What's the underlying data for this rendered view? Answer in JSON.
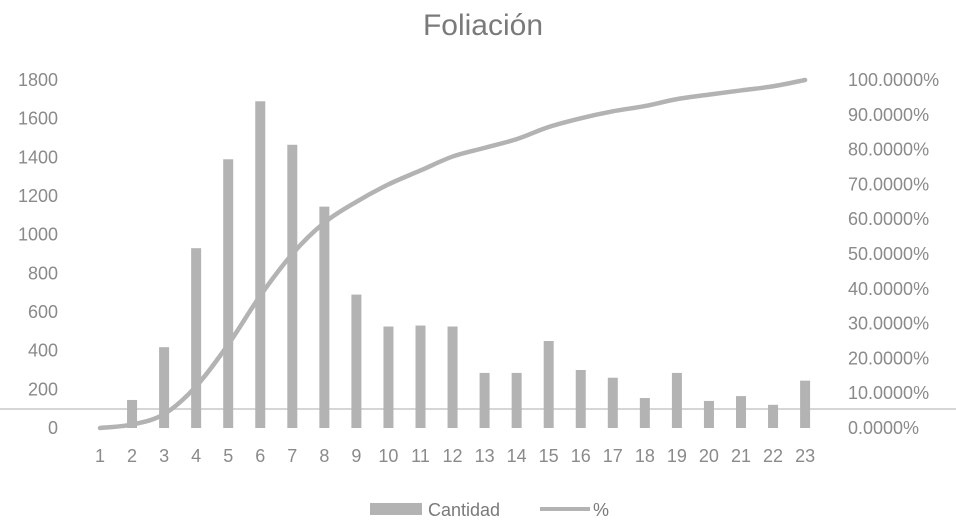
{
  "chart_data": {
    "type": "bar",
    "title": "Foliación",
    "xlabel": "",
    "ylabel": "",
    "categories": [
      "1",
      "2",
      "3",
      "4",
      "5",
      "6",
      "7",
      "8",
      "9",
      "10",
      "11",
      "12",
      "13",
      "14",
      "15",
      "16",
      "17",
      "18",
      "19",
      "20",
      "21",
      "22",
      "23"
    ],
    "series": [
      {
        "name": "Cantidad",
        "type": "bar",
        "axis": "left",
        "color": "#b3b3b3",
        "values": [
          0,
          145,
          418,
          930,
          1390,
          1690,
          1465,
          1145,
          690,
          525,
          530,
          525,
          285,
          285,
          450,
          300,
          260,
          155,
          285,
          140,
          165,
          120,
          245
        ]
      },
      {
        "name": "%",
        "type": "line",
        "axis": "right",
        "color": "#b3b3b3",
        "values": [
          0.0,
          1.0,
          4.0,
          12.0,
          24.0,
          38.0,
          50.0,
          59.0,
          65.0,
          70.0,
          74.0,
          78.0,
          80.5,
          83.0,
          86.5,
          89.0,
          91.0,
          92.5,
          94.5,
          95.8,
          97.0,
          98.2,
          100.0
        ]
      }
    ],
    "y_left": {
      "min": 0,
      "max": 1800,
      "ticks": [
        "0",
        "200",
        "400",
        "600",
        "800",
        "1000",
        "1200",
        "1400",
        "1600",
        "1800"
      ]
    },
    "y_right": {
      "min": 0,
      "max": 100,
      "ticks": [
        "0.0000%",
        "10.0000%",
        "20.0000%",
        "30.0000%",
        "40.0000%",
        "50.0000%",
        "60.0000%",
        "70.0000%",
        "80.0000%",
        "90.0000%",
        "100.0000%"
      ]
    },
    "grid": false,
    "legend": {
      "position": "bottom",
      "entries": [
        "Cantidad",
        "%"
      ]
    }
  }
}
